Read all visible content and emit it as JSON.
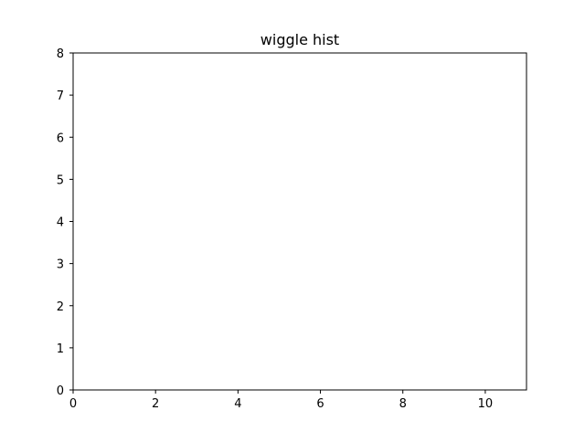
{
  "chart_data": {
    "type": "bar",
    "title": "wiggle hist",
    "xlabel": "",
    "ylabel": "",
    "xlim": [
      0,
      11
    ],
    "ylim": [
      0,
      8
    ],
    "x_ticks": [
      0,
      2,
      4,
      6,
      8,
      10
    ],
    "y_ticks": [
      0,
      1,
      2,
      3,
      4,
      5,
      6,
      7,
      8
    ],
    "series": [],
    "grid": false,
    "legend": "none"
  }
}
